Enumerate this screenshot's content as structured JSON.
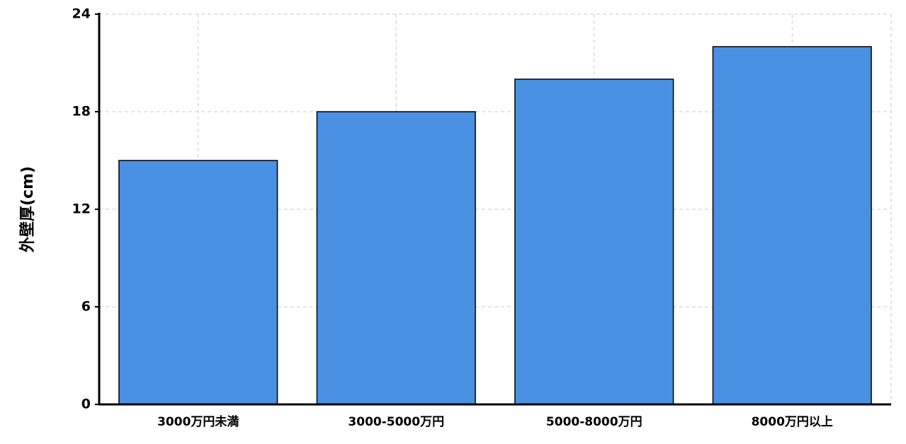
{
  "chart_data": {
    "type": "bar",
    "y_label": "外壁厚(cm)",
    "categories": [
      "3000万円未満",
      "3000-5000万円",
      "5000-8000万円",
      "8000万円以上"
    ],
    "values": [
      15,
      18,
      20,
      22
    ],
    "color": "#4a90e2",
    "ylim": [
      0,
      24
    ],
    "yticks": [
      0,
      6,
      12,
      18,
      24
    ],
    "grid": true
  }
}
